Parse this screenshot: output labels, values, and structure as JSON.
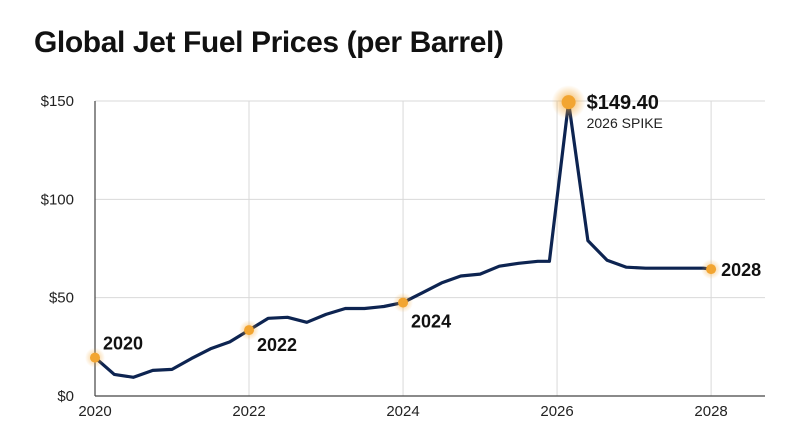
{
  "chart_data": {
    "type": "line",
    "title": "Global Jet Fuel Prices (per Barrel)",
    "xlabel": "",
    "ylabel": "",
    "xlim": [
      2020,
      2028.7
    ],
    "ylim": [
      0,
      150
    ],
    "grid": true,
    "x_ticks": [
      {
        "value": 2020,
        "label": "2020"
      },
      {
        "value": 2022,
        "label": "2022"
      },
      {
        "value": 2024,
        "label": "2024"
      },
      {
        "value": 2026,
        "label": "2026"
      },
      {
        "value": 2028,
        "label": "2028"
      }
    ],
    "y_ticks": [
      {
        "value": 0,
        "label": "$0"
      },
      {
        "value": 50,
        "label": "$50"
      },
      {
        "value": 100,
        "label": "$100"
      },
      {
        "value": 150,
        "label": "$150"
      }
    ],
    "series": [
      {
        "color": "#0d2451",
        "x": [
          2020.0,
          2020.25,
          2020.5,
          2020.75,
          2021.0,
          2021.25,
          2021.5,
          2021.75,
          2022.0,
          2022.25,
          2022.5,
          2022.75,
          2023.0,
          2023.25,
          2023.5,
          2023.75,
          2024.0,
          2024.25,
          2024.5,
          2024.75,
          2025.0,
          2025.25,
          2025.5,
          2025.75,
          2025.9,
          2026.15,
          2026.4,
          2026.65,
          2026.9,
          2027.15,
          2027.4,
          2027.65,
          2027.9,
          2028.0
        ],
        "y": [
          19.5,
          11,
          9.5,
          13,
          13.5,
          19,
          24,
          27.5,
          33.5,
          39.5,
          40,
          37.5,
          41.5,
          44.5,
          44.5,
          45.5,
          47.5,
          52.5,
          57.5,
          61,
          62,
          66,
          67.5,
          68.5,
          68.5,
          149.4,
          79,
          69,
          65.5,
          65,
          65,
          65,
          65,
          64.5
        ]
      }
    ],
    "highlights": [
      {
        "x": 2020.0,
        "y": 19.5,
        "label": "2020"
      },
      {
        "x": 2022.0,
        "y": 33.5,
        "label": "2022"
      },
      {
        "x": 2024.0,
        "y": 47.5,
        "label": "2024"
      },
      {
        "x": 2028.0,
        "y": 64.5,
        "label": "2028"
      }
    ],
    "spike": {
      "x": 2026.15,
      "y": 149.4,
      "value_label": "$149.40",
      "sub_label": "2026 SPIKE"
    },
    "colors": {
      "line": "#0d2451",
      "marker": "#f2a531",
      "grid": "#d9d9d9",
      "axis": "#444444"
    }
  }
}
